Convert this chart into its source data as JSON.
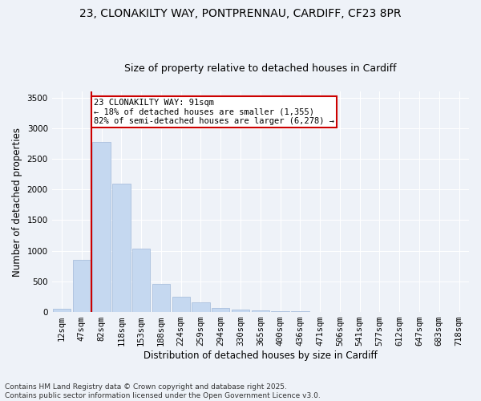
{
  "title_line1": "23, CLONAKILTY WAY, PONTPRENNAU, CARDIFF, CF23 8PR",
  "title_line2": "Size of property relative to detached houses in Cardiff",
  "xlabel": "Distribution of detached houses by size in Cardiff",
  "ylabel": "Number of detached properties",
  "bar_color": "#c5d8f0",
  "bar_edgecolor": "#a0b8d8",
  "vline_color": "#cc0000",
  "categories": [
    "12sqm",
    "47sqm",
    "82sqm",
    "118sqm",
    "153sqm",
    "188sqm",
    "224sqm",
    "259sqm",
    "294sqm",
    "330sqm",
    "365sqm",
    "400sqm",
    "436sqm",
    "471sqm",
    "506sqm",
    "541sqm",
    "577sqm",
    "612sqm",
    "647sqm",
    "683sqm",
    "718sqm"
  ],
  "values": [
    50,
    850,
    2780,
    2100,
    1040,
    460,
    250,
    155,
    65,
    45,
    30,
    15,
    8,
    4,
    2,
    1,
    1,
    0,
    0,
    0,
    0
  ],
  "ylim": [
    0,
    3600
  ],
  "yticks": [
    0,
    500,
    1000,
    1500,
    2000,
    2500,
    3000,
    3500
  ],
  "annotation_title": "23 CLONAKILTY WAY: 91sqm",
  "annotation_line2": "← 18% of detached houses are smaller (1,355)",
  "annotation_line3": "82% of semi-detached houses are larger (6,278) →",
  "annotation_box_color": "#ffffff",
  "annotation_box_edgecolor": "#cc0000",
  "footnote_line1": "Contains HM Land Registry data © Crown copyright and database right 2025.",
  "footnote_line2": "Contains public sector information licensed under the Open Government Licence v3.0.",
  "background_color": "#eef2f8",
  "grid_color": "#ffffff",
  "title_fontsize": 10,
  "subtitle_fontsize": 9,
  "axis_label_fontsize": 8.5,
  "tick_fontsize": 7.5,
  "annotation_fontsize": 7.5,
  "footnote_fontsize": 6.5
}
